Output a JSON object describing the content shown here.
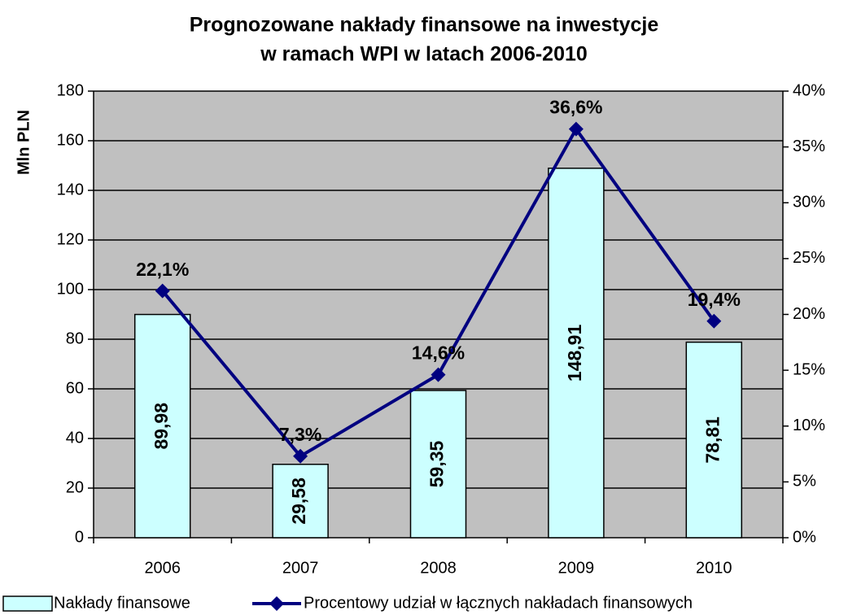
{
  "chart_data": {
    "type": "bar-line",
    "title": [
      "Prognozowane nakłady finansowe na inwestycje",
      "w ramach WPI w latach 2006-2010"
    ],
    "y_label": "Mln PLN",
    "categories": [
      "2006",
      "2007",
      "2008",
      "2009",
      "2010"
    ],
    "series": [
      {
        "name": "Nakłady finansowe",
        "type": "bar",
        "color": "#ccffff",
        "values": [
          89.98,
          29.58,
          59.35,
          148.91,
          78.81
        ],
        "value_labels": [
          "89,98",
          "29,58",
          "59,35",
          "148,91",
          "78,81"
        ]
      },
      {
        "name": "Procentowy udział w łącznych nakładach finansowych",
        "type": "line",
        "axis": "y2",
        "color": "#000080",
        "values": [
          22.1,
          7.3,
          14.6,
          36.6,
          19.4
        ],
        "value_labels": [
          "22,1%",
          "7,3%",
          "14,6%",
          "36,6%",
          "19,4%"
        ]
      }
    ],
    "ylim": [
      0,
      180
    ],
    "yticks": [
      0,
      20,
      40,
      60,
      80,
      100,
      120,
      140,
      160,
      180
    ],
    "y2lim": [
      0,
      40
    ],
    "y2ticks": [
      {
        "value": 0,
        "label": "0%"
      },
      {
        "value": 5,
        "label": "5%"
      },
      {
        "value": 10,
        "label": "10%"
      },
      {
        "value": 15,
        "label": "15%"
      },
      {
        "value": 20,
        "label": "20%"
      },
      {
        "value": 25,
        "label": "25%"
      },
      {
        "value": 30,
        "label": "30%"
      },
      {
        "value": 35,
        "label": "35%"
      },
      {
        "value": 40,
        "label": "40%"
      }
    ],
    "grid": true,
    "plot_background": "#c0c0c0",
    "legend": "bottom"
  }
}
